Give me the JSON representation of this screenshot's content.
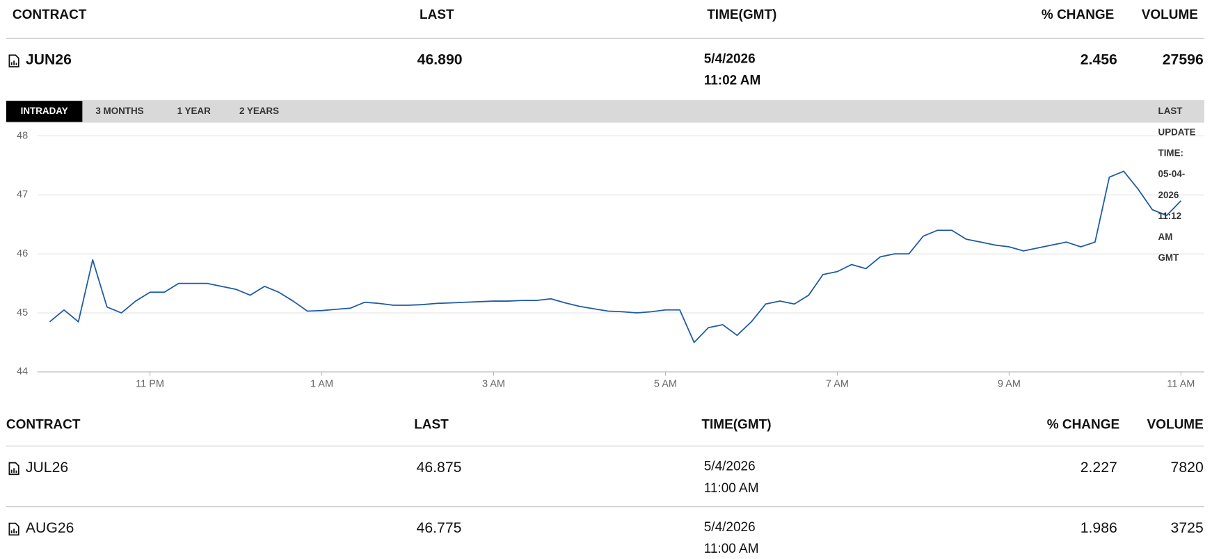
{
  "header": [
    "CONTRACT",
    "LAST",
    "TIME(GMT)",
    "% CHANGE",
    "VOLUME"
  ],
  "main": {
    "contract": "JUN26",
    "last": "46.890",
    "date": "5/4/2026",
    "time": "11:02 AM",
    "change": "2.456",
    "volume": "27596"
  },
  "tabs": [
    "INTRADAY",
    "3 MONTHS",
    "1 YEAR",
    "2 YEARS"
  ],
  "last_update": "LAST UPDATE TIME: 05-04-2026 11:12 AM GMT",
  "chart_data": {
    "type": "line",
    "color": "#1f5aa6",
    "grid": true,
    "ylim": [
      44,
      48
    ],
    "yticks": [
      44,
      45,
      46,
      47,
      48
    ],
    "categories": [
      null,
      null,
      null,
      null,
      null,
      null,
      null,
      "11 PM",
      null,
      null,
      null,
      null,
      null,
      null,
      null,
      null,
      null,
      null,
      null,
      "1 AM",
      null,
      null,
      null,
      null,
      null,
      null,
      null,
      null,
      null,
      null,
      null,
      "3 AM",
      null,
      null,
      null,
      null,
      null,
      null,
      null,
      null,
      null,
      null,
      null,
      "5 AM",
      null,
      null,
      null,
      null,
      null,
      null,
      null,
      null,
      null,
      null,
      null,
      "7 AM",
      null,
      null,
      null,
      null,
      null,
      null,
      null,
      null,
      null,
      null,
      null,
      "9 AM",
      null,
      null,
      null,
      null,
      null,
      null,
      null,
      null,
      null,
      null,
      null,
      "11 AM"
    ],
    "values": [
      44.85,
      45.05,
      44.85,
      45.9,
      45.1,
      45.0,
      45.2,
      45.35,
      45.35,
      45.5,
      45.5,
      45.5,
      45.45,
      45.4,
      45.3,
      45.45,
      45.35,
      45.2,
      45.03,
      45.04,
      45.06,
      45.08,
      45.18,
      45.16,
      45.13,
      45.13,
      45.14,
      45.16,
      45.17,
      45.18,
      45.19,
      45.2,
      45.2,
      45.21,
      45.21,
      45.24,
      45.17,
      45.11,
      45.07,
      45.03,
      45.02,
      45.0,
      45.02,
      45.05,
      45.05,
      44.5,
      44.75,
      44.8,
      44.62,
      44.85,
      45.15,
      45.2,
      45.15,
      45.3,
      45.65,
      45.7,
      45.82,
      45.75,
      45.95,
      46.0,
      46.0,
      46.3,
      46.4,
      46.4,
      46.25,
      46.2,
      46.15,
      46.12,
      46.05,
      46.1,
      46.15,
      46.2,
      46.12,
      46.2,
      47.3,
      47.4,
      47.1,
      46.75,
      46.65,
      46.9
    ]
  },
  "table": {
    "header": [
      "CONTRACT",
      "LAST",
      "TIME(GMT)",
      "% CHANGE",
      "VOLUME"
    ],
    "rows": [
      [
        "JUL26",
        "46.875",
        "5/4/2026",
        "11:00 AM",
        "2.227",
        "7820"
      ],
      [
        "AUG26",
        "46.775",
        "5/4/2026",
        "11:00 AM",
        "1.986",
        "3725"
      ]
    ]
  }
}
